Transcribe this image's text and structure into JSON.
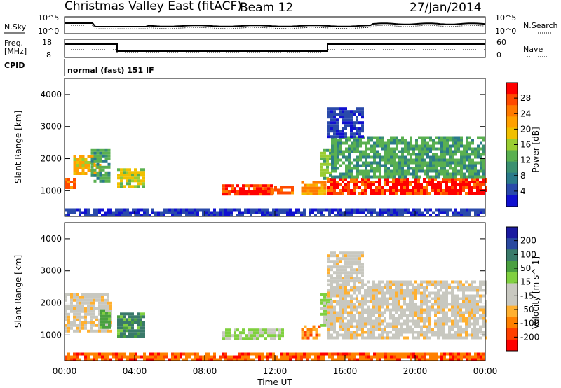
{
  "header": {
    "title": "Christmas Valley East (fitACF)",
    "beam": "Beam 12",
    "date": "27/Jan/2014"
  },
  "top_panels": {
    "nsky_label": "N.Sky",
    "nsearch_label": "N.Search",
    "nsky_ticks": [
      "10^5",
      "10^0"
    ],
    "nsearch_ticks": [
      "10^5",
      "10^0"
    ],
    "freq_label_1": "Freq.",
    "freq_label_2": "[MHz]",
    "freq_ticks": [
      "18",
      "8"
    ],
    "nave_label": "Nave",
    "nave_ticks": [
      "60",
      "0"
    ],
    "cpid_label": "CPID",
    "cpid_value": "normal (fast) 151 IF"
  },
  "chart_data": [
    {
      "type": "heatmap",
      "name": "power",
      "ylabel": "Slant Range [km]",
      "xlabel": "Time UT",
      "xlim": [
        0,
        24
      ],
      "ylim": [
        200,
        4500
      ],
      "y_ticks": [
        1000,
        2000,
        3000,
        4000
      ],
      "x_tick_labels": [
        "00:00",
        "04:00",
        "08:00",
        "12:00",
        "16:00",
        "20:00",
        "00:00"
      ],
      "colorbar": {
        "label": "Power [dB]",
        "ticks": [
          "28",
          "24",
          "20",
          "16",
          "12",
          "8",
          "4"
        ],
        "colors": [
          "#ff0000",
          "#ff4a00",
          "#ff7a00",
          "#ffa000",
          "#f0c000",
          "#9acd32",
          "#5ab050",
          "#3a9070",
          "#2a7a8a",
          "#2a4aaa",
          "#1010d0"
        ]
      },
      "regions": [
        {
          "t0": 0.0,
          "t1": 0.6,
          "r0": 1100,
          "r1": 1400,
          "level": 1
        },
        {
          "t0": 0.5,
          "t1": 2.0,
          "r0": 1500,
          "r1": 2100,
          "level": 3
        },
        {
          "t0": 1.5,
          "t1": 2.6,
          "r0": 1300,
          "r1": 2300,
          "level": 6
        },
        {
          "t0": 3.0,
          "t1": 4.5,
          "r0": 1100,
          "r1": 1700,
          "level": 4
        },
        {
          "t0": 9.0,
          "t1": 11.8,
          "r0": 900,
          "r1": 1200,
          "level": 0
        },
        {
          "t0": 11.8,
          "t1": 13.0,
          "r0": 900,
          "r1": 1150,
          "level": 1
        },
        {
          "t0": 13.5,
          "t1": 14.8,
          "r0": 950,
          "r1": 1300,
          "level": 2
        },
        {
          "t0": 14.6,
          "t1": 15.2,
          "r0": 1400,
          "r1": 2300,
          "level": 5
        },
        {
          "t0": 15.0,
          "t1": 24.0,
          "r0": 900,
          "r1": 1400,
          "level": 0
        },
        {
          "t0": 15.2,
          "t1": 24.0,
          "r0": 1400,
          "r1": 2700,
          "level": 6
        },
        {
          "t0": 15.0,
          "t1": 17.0,
          "r0": 2700,
          "r1": 3600,
          "level": 9
        },
        {
          "t0": 0.0,
          "t1": 24.0,
          "r0": 250,
          "r1": 450,
          "level": 9
        }
      ]
    },
    {
      "type": "heatmap",
      "name": "velocity",
      "ylabel": "Slant Range [km]",
      "xlabel": "Time UT",
      "xlim": [
        0,
        24
      ],
      "ylim": [
        200,
        4500
      ],
      "y_ticks": [
        1000,
        2000,
        3000,
        4000
      ],
      "x_tick_labels": [
        "00:00",
        "04:00",
        "08:00",
        "12:00",
        "16:00",
        "20:00",
        "00:00"
      ],
      "colorbar": {
        "label": "Velocity [m s^-1]",
        "ticks": [
          "200",
          "100",
          "50",
          "15",
          "-15",
          "-50",
          "-100",
          "-200"
        ],
        "colors": [
          "#1a1aa0",
          "#2a4aa0",
          "#3a7a6a",
          "#4aa040",
          "#80d040",
          "#c8c8c0",
          "#c8c8c0",
          "#ffb030",
          "#ff8000",
          "#ff4000",
          "#ff0000"
        ]
      },
      "regions": [
        {
          "t0": 0.0,
          "t1": 2.6,
          "r0": 1100,
          "r1": 2300,
          "level": 5
        },
        {
          "t0": 2.0,
          "t1": 2.6,
          "r0": 1200,
          "r1": 1800,
          "level": 3
        },
        {
          "t0": 3.0,
          "t1": 4.5,
          "r0": 950,
          "r1": 1700,
          "level": 2
        },
        {
          "t0": 9.0,
          "t1": 12.5,
          "r0": 900,
          "r1": 1200,
          "level": 4
        },
        {
          "t0": 13.5,
          "t1": 14.5,
          "r0": 900,
          "r1": 1300,
          "level": 7
        },
        {
          "t0": 14.6,
          "t1": 15.2,
          "r0": 1300,
          "r1": 2300,
          "level": 4
        },
        {
          "t0": 15.0,
          "t1": 24.0,
          "r0": 900,
          "r1": 2700,
          "level": 5
        },
        {
          "t0": 15.0,
          "t1": 17.0,
          "r0": 2700,
          "r1": 3600,
          "level": 5
        },
        {
          "t0": 0.0,
          "t1": 24.0,
          "r0": 250,
          "r1": 450,
          "level": 8
        }
      ]
    }
  ]
}
